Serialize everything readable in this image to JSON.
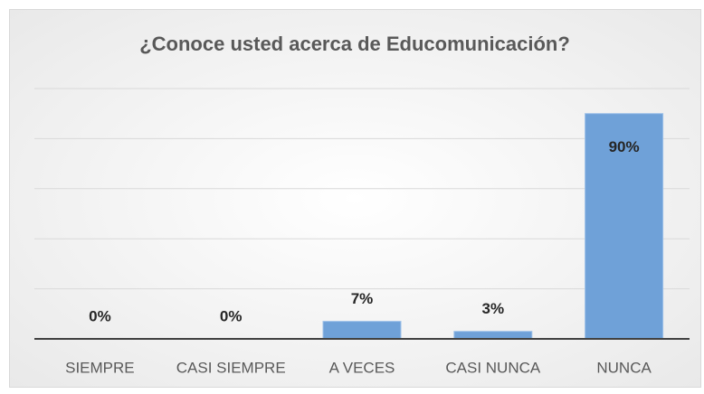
{
  "chart_data": {
    "type": "bar",
    "title": "¿Conoce usted acerca de Educomunicación?",
    "categories": [
      "SIEMPRE",
      "CASI SIEMPRE",
      "A VECES",
      "CASI NUNCA",
      "NUNCA"
    ],
    "values": [
      0,
      0,
      7,
      3,
      90
    ],
    "value_labels": [
      "0%",
      "0%",
      "7%",
      "3%",
      "90%"
    ],
    "color": "#6fa1d8",
    "ylim": [
      0,
      100
    ],
    "yticks": [
      0,
      20,
      40,
      60,
      80,
      100
    ],
    "grid": true
  }
}
